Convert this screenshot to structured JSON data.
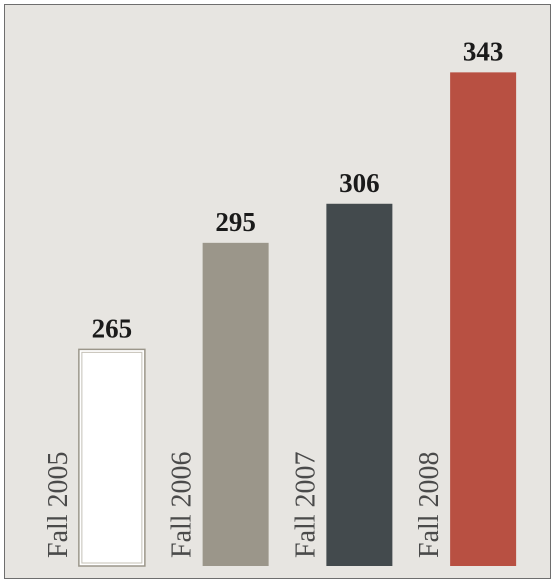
{
  "chart_data": {
    "type": "bar",
    "categories": [
      "Fall 2005",
      "Fall 2006",
      "Fall 2007",
      "Fall 2008"
    ],
    "values": [
      265,
      295,
      306,
      343
    ],
    "colors": [
      "#ffffff",
      "#9b968a",
      "#434a4d",
      "#b85042"
    ],
    "ylim": [
      204,
      360
    ]
  }
}
